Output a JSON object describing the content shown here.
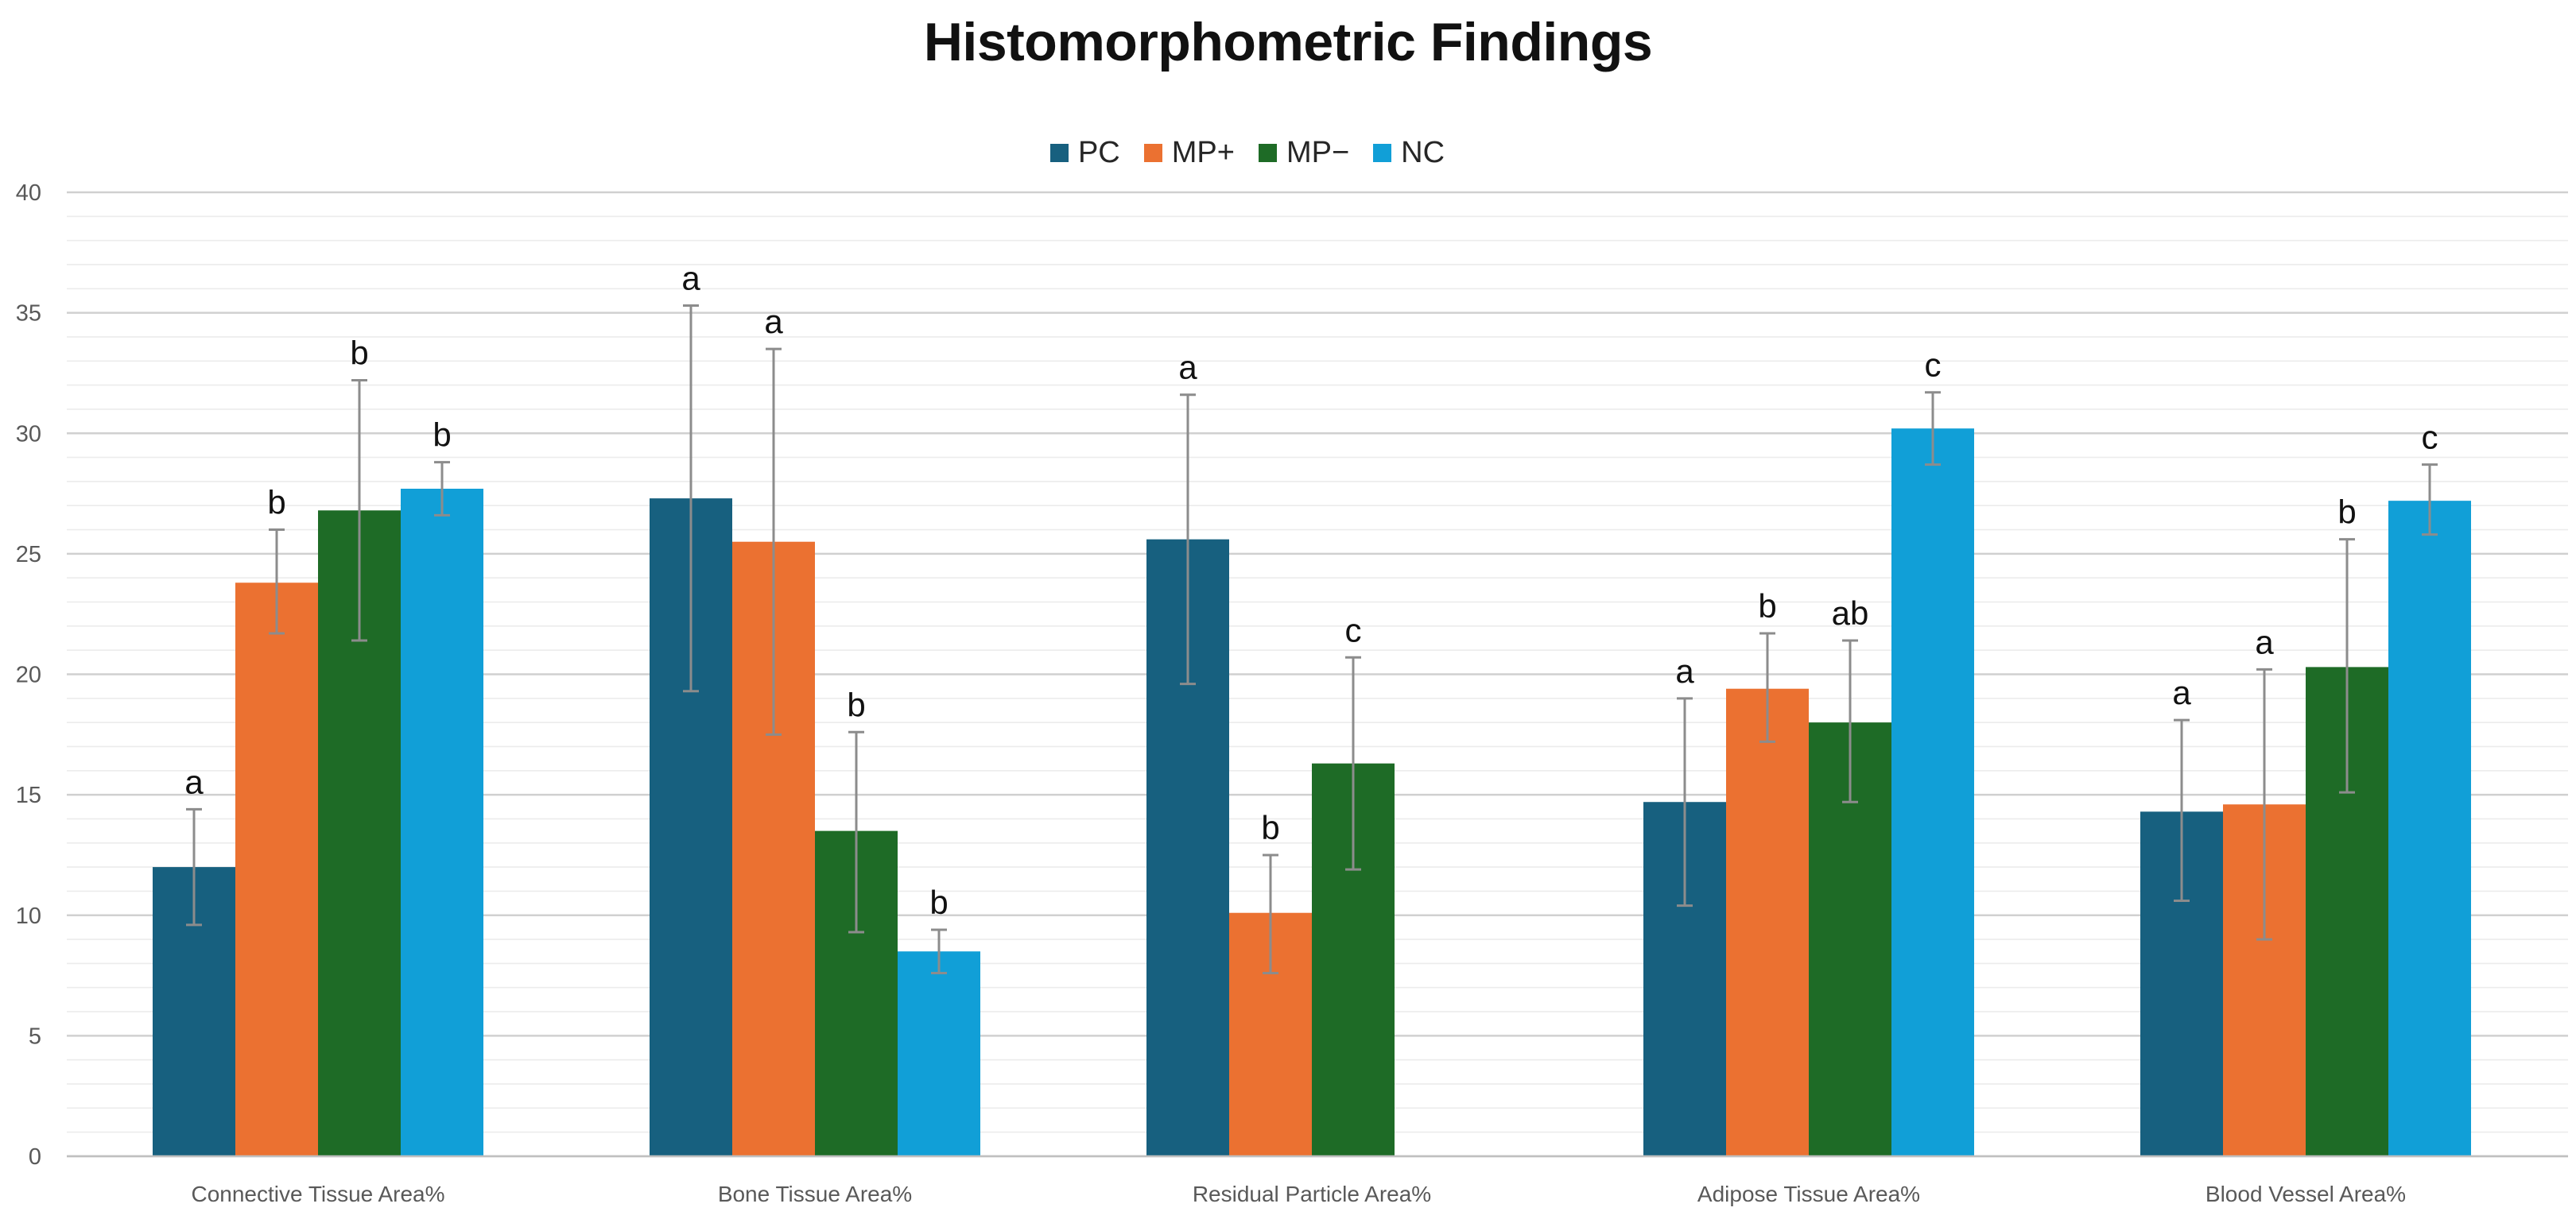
{
  "chart_data": {
    "type": "bar",
    "title": "Histomorphometric Findings",
    "xlabel": "",
    "ylabel": "",
    "ylim": [
      0,
      40
    ],
    "yticks": [
      "0",
      "5",
      "10",
      "15",
      "20",
      "25",
      "30",
      "35",
      "40"
    ],
    "grid": true,
    "legend_position": "top",
    "categories": [
      "Connective Tissue Area%",
      "Bone Tissue Area%",
      "Residual Particle Area%",
      "Adipose Tissue Area%",
      "Blood Vessel Area%"
    ],
    "series": [
      {
        "name": "PC",
        "color": "#17607f",
        "values": [
          12.0,
          27.3,
          25.6,
          14.7,
          14.3
        ],
        "error_low": [
          9.6,
          19.3,
          19.6,
          10.4,
          10.6
        ],
        "error_high": [
          14.4,
          35.3,
          31.6,
          19.0,
          18.1
        ],
        "letters": [
          "a",
          "a",
          "a",
          "a",
          "a"
        ]
      },
      {
        "name": "MP+",
        "color": "#eb7131",
        "values": [
          23.8,
          25.5,
          10.1,
          19.4,
          14.6
        ],
        "error_low": [
          21.7,
          17.5,
          7.6,
          17.2,
          9.0
        ],
        "error_high": [
          26.0,
          33.5,
          12.5,
          21.7,
          20.2
        ],
        "letters": [
          "b",
          "a",
          "b",
          "b",
          "a"
        ]
      },
      {
        "name": "MP−",
        "color": "#1e6b26",
        "values": [
          26.8,
          13.5,
          16.3,
          18.0,
          20.3
        ],
        "error_low": [
          21.4,
          9.3,
          11.9,
          14.7,
          15.1
        ],
        "error_high": [
          32.2,
          17.6,
          20.7,
          21.4,
          25.6
        ],
        "letters": [
          "b",
          "b",
          "c",
          "ab",
          "b"
        ]
      },
      {
        "name": "NC",
        "color": "#119fd7",
        "values": [
          27.7,
          8.5,
          null,
          30.2,
          27.2
        ],
        "error_low": [
          26.6,
          7.6,
          null,
          28.7,
          25.8
        ],
        "error_high": [
          28.8,
          9.4,
          null,
          31.7,
          28.7
        ],
        "letters": [
          "b",
          "b",
          null,
          "c",
          "c"
        ]
      }
    ],
    "colors": {
      "grid": "#d9d9d9",
      "axis_text": "#595959",
      "error_bar": "#8c8c8c",
      "letter": "#111111"
    }
  }
}
